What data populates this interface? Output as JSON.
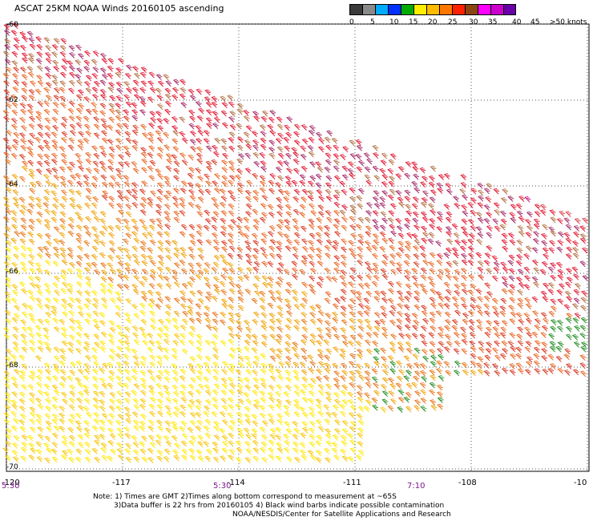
{
  "title": "ASCAT 25KM NOAA Winds 20160105 ascending",
  "legend": {
    "colors": [
      "#3a3a3a",
      "#8a8a8a",
      "#00aaff",
      "#0030ff",
      "#00aa00",
      "#ffee00",
      "#ffbb00",
      "#ff7700",
      "#ff2200",
      "#8b4513",
      "#ff00ff",
      "#cc00cc",
      "#6a00aa"
    ],
    "labels": [
      "0",
      "5",
      "10",
      "15",
      "20",
      "25",
      "30",
      "35",
      "40",
      "45",
      ">50 knots"
    ]
  },
  "lat_labels": [
    "-60",
    "-62",
    "-64",
    "-66",
    "-68",
    "-70"
  ],
  "lon_labels": [
    "-120",
    "-117",
    "-114",
    "-111",
    "-108",
    "-10"
  ],
  "time_labels": [
    "5:30",
    "5:30",
    "7:10"
  ],
  "notes": [
    "Note: 1) Times are GMT 2)Times along bottom correspond to measurement at ~65S",
    "3)Data buffer is 22 hrs from 20160105 4) Black wind barbs indicate possible contamination",
    "NOAA/NESDIS/Center for Satellite Applications and Research"
  ]
}
